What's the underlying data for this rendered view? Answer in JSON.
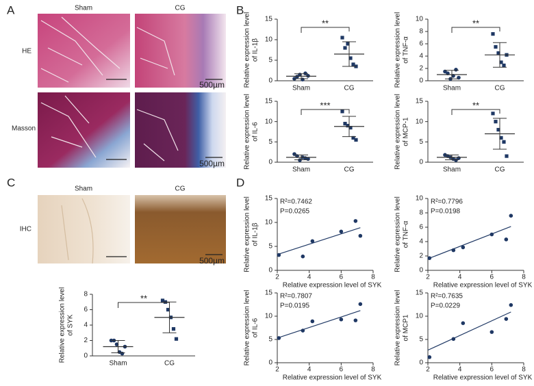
{
  "panels": {
    "A": {
      "letter": "A",
      "columns": [
        "Sham",
        "CG"
      ],
      "rows": [
        "HE",
        "Masson"
      ],
      "scale_bar": "500µm"
    },
    "B": {
      "letter": "B"
    },
    "C": {
      "letter": "C",
      "columns": [
        "Sham",
        "CG"
      ],
      "rows": [
        "IHC"
      ],
      "scale_bar": "500µm"
    },
    "D": {
      "letter": "D"
    }
  },
  "chart_data": [
    {
      "type": "dotplot",
      "ylabel": [
        "Relative expression level",
        "of IL-1β"
      ],
      "categories": [
        "Sham",
        "CG"
      ],
      "color": "#1f3864",
      "points": [
        [
          0.5,
          1.0,
          1.5,
          0.3,
          1.8,
          1.2
        ],
        [
          10.5,
          8.0,
          9.0,
          5.5,
          4.0,
          3.5
        ]
      ],
      "mean": [
        1.1,
        6.5
      ],
      "sd": [
        0.6,
        3.0
      ],
      "annotation": "**",
      "ylim": [
        0,
        15
      ],
      "yticks": [
        0,
        5,
        10,
        15
      ]
    },
    {
      "type": "dotplot",
      "ylabel": [
        "Relative expression level",
        "of TNF-α"
      ],
      "categories": [
        "Sham",
        "CG"
      ],
      "color": "#1f3864",
      "points": [
        [
          1.5,
          1.2,
          0.3,
          0.8,
          1.8,
          0.5
        ],
        [
          7.6,
          5.5,
          4.5,
          3.0,
          2.5,
          4.2
        ]
      ],
      "mean": [
        1.0,
        4.2
      ],
      "sd": [
        0.7,
        2.0
      ],
      "annotation": "**",
      "ylim": [
        0,
        10
      ],
      "yticks": [
        0,
        2,
        4,
        6,
        8,
        10
      ]
    },
    {
      "type": "dotplot",
      "ylabel": [
        "Relative expression level",
        "of IL-6"
      ],
      "categories": [
        "Sham",
        "CG"
      ],
      "color": "#1f3864",
      "points": [
        [
          2.0,
          1.5,
          0.5,
          1.2,
          1.0,
          0.8
        ],
        [
          12.5,
          9.5,
          9.0,
          8.5,
          6.0,
          5.5
        ]
      ],
      "mean": [
        1.2,
        8.8
      ],
      "sd": [
        0.6,
        2.5
      ],
      "annotation": "***",
      "ylim": [
        0,
        15
      ],
      "yticks": [
        0,
        5,
        10,
        15
      ]
    },
    {
      "type": "dotplot",
      "ylabel": [
        "Relative expression level",
        "of MCP-1"
      ],
      "categories": [
        "Sham",
        "CG"
      ],
      "color": "#1f3864",
      "points": [
        [
          1.8,
          1.5,
          1.2,
          0.8,
          0.5,
          1.0
        ],
        [
          12.0,
          10.0,
          8.0,
          6.0,
          5.0,
          1.5
        ]
      ],
      "mean": [
        1.2,
        7.0
      ],
      "sd": [
        0.6,
        3.8
      ],
      "annotation": "**",
      "ylim": [
        0,
        15
      ],
      "yticks": [
        0,
        5,
        10,
        15
      ]
    },
    {
      "type": "dotplot",
      "ylabel": [
        "Relative expression level",
        "of SYK"
      ],
      "categories": [
        "Sham",
        "CG"
      ],
      "color": "#1f3864",
      "points": [
        [
          2.0,
          2.0,
          1.5,
          0.5,
          0.3,
          1.2
        ],
        [
          7.2,
          7.0,
          6.0,
          5.0,
          3.5,
          2.2
        ]
      ],
      "mean": [
        1.2,
        5.0
      ],
      "sd": [
        0.8,
        2.0
      ],
      "annotation": "**",
      "ylim": [
        0,
        8
      ],
      "yticks": [
        0,
        2,
        4,
        6,
        8
      ]
    },
    {
      "type": "scatter",
      "ylabel": [
        "Relative expression level",
        "of IL-1β"
      ],
      "xlabel": "Relative expression level of SYK",
      "color": "#1f3864",
      "x": [
        2.1,
        3.6,
        4.2,
        6.0,
        6.9,
        7.2
      ],
      "y": [
        3.2,
        2.9,
        6.1,
        8.1,
        10.3,
        7.2
      ],
      "trend_x": [
        2.0,
        7.2
      ],
      "trend_y": [
        3.3,
        8.9
      ],
      "annotations": [
        "R²=0.7462",
        "P=0.0265"
      ],
      "xlim": [
        2,
        8
      ],
      "xticks": [
        2,
        4,
        6,
        8
      ],
      "ylim": [
        0,
        15
      ],
      "yticks": [
        0,
        5,
        10,
        15
      ]
    },
    {
      "type": "scatter",
      "ylabel": [
        "Relative expression level",
        "of TNF-α"
      ],
      "xlabel": "Relative expression level of SYK",
      "color": "#1f3864",
      "x": [
        2.1,
        3.6,
        4.2,
        6.0,
        6.9,
        7.2
      ],
      "y": [
        1.7,
        2.8,
        3.2,
        5.0,
        4.3,
        7.6
      ],
      "trend_x": [
        2.0,
        7.2
      ],
      "trend_y": [
        1.6,
        6.1
      ],
      "annotations": [
        "R²=0.7796",
        "P=0.0198"
      ],
      "xlim": [
        2,
        8
      ],
      "xticks": [
        2,
        4,
        6,
        8
      ],
      "ylim": [
        0,
        10
      ],
      "yticks": [
        0,
        2,
        4,
        6,
        8,
        10
      ]
    },
    {
      "type": "scatter",
      "ylabel": [
        "Relative expression level",
        "of IL-6"
      ],
      "xlabel": "Relative expression level of SYK",
      "color": "#1f3864",
      "x": [
        2.1,
        3.6,
        4.2,
        6.0,
        6.9,
        7.2
      ],
      "y": [
        5.3,
        6.9,
        8.9,
        9.3,
        9.1,
        12.6
      ],
      "trend_x": [
        2.0,
        7.2
      ],
      "trend_y": [
        5.3,
        11.2
      ],
      "annotations": [
        "R²=0.7807",
        "P=0.0195"
      ],
      "xlim": [
        2,
        8
      ],
      "xticks": [
        2,
        4,
        6,
        8
      ],
      "ylim": [
        0,
        15
      ],
      "yticks": [
        0,
        5,
        10,
        15
      ]
    },
    {
      "type": "scatter",
      "ylabel": [
        "Relative expression level",
        "of MCP1"
      ],
      "xlabel": "Relative expression level of SYK",
      "color": "#1f3864",
      "x": [
        2.1,
        3.6,
        4.2,
        6.0,
        6.9,
        7.2
      ],
      "y": [
        1.2,
        5.1,
        8.5,
        6.6,
        9.4,
        12.4
      ],
      "trend_x": [
        2.0,
        7.2
      ],
      "trend_y": [
        2.7,
        10.9
      ],
      "annotations": [
        "R²=0.7635",
        "P=0.0229"
      ],
      "xlim": [
        2,
        8
      ],
      "xticks": [
        2,
        4,
        6,
        8
      ],
      "ylim": [
        0,
        15
      ],
      "yticks": [
        0,
        5,
        10,
        15
      ]
    }
  ]
}
